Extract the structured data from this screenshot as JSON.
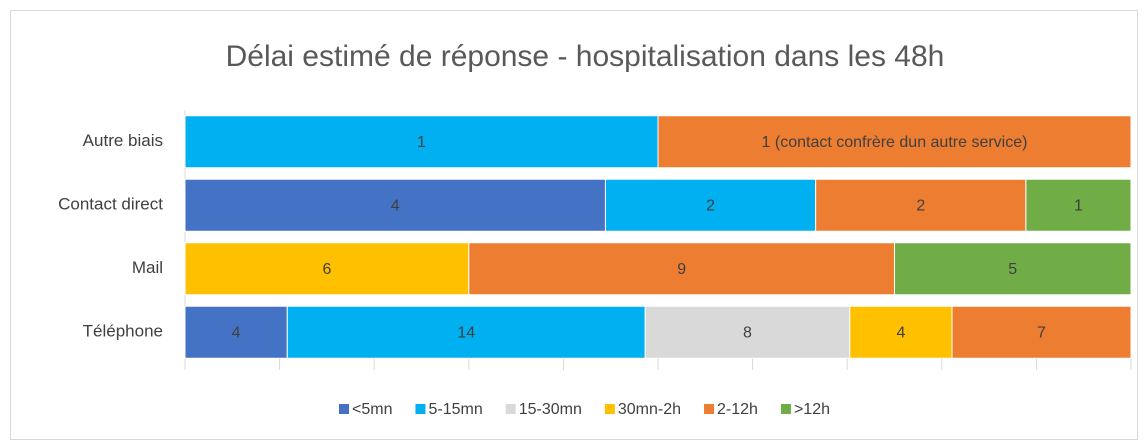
{
  "chart_data": {
    "type": "stacked_percent_bar_horizontal",
    "title": "Délai estimé de réponse - hospitalisation dans les 48h",
    "categories": [
      "Autre biais",
      "Contact direct",
      "Mail",
      "Téléphone"
    ],
    "series": [
      {
        "name": "<5mn",
        "color": "#4472c4",
        "values": [
          null,
          4,
          null,
          4
        ]
      },
      {
        "name": "5-15mn",
        "color": "#00b0f0",
        "values": [
          1,
          2,
          null,
          14
        ]
      },
      {
        "name": "15-30mn",
        "color": "#d9d9d9",
        "values": [
          null,
          null,
          null,
          8
        ]
      },
      {
        "name": "30mn-2h",
        "color": "#ffc000",
        "values": [
          null,
          null,
          6,
          4
        ]
      },
      {
        "name": "2-12h",
        "color": "#ed7d31",
        "values": [
          1,
          2,
          9,
          7
        ],
        "value_labels": [
          "1 (contact confrère dun autre service)",
          "2",
          "9",
          "7"
        ]
      },
      {
        "name": ">12h",
        "color": "#70ad47",
        "values": [
          null,
          1,
          5,
          null
        ]
      }
    ],
    "xlim": [
      0,
      100
    ],
    "xticks": [
      0,
      10,
      20,
      30,
      40,
      50,
      60,
      70,
      80,
      90,
      100
    ],
    "legend": "bottom"
  }
}
